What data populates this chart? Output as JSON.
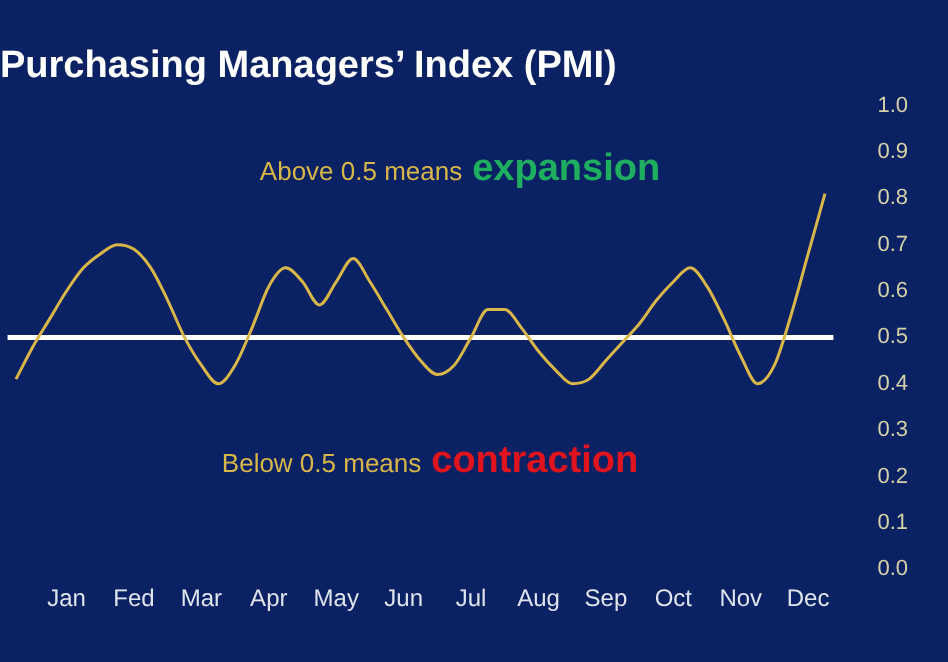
{
  "chart_data": {
    "type": "line",
    "title": "Purchasing Managers’ Index (PMI)",
    "categories": [
      null,
      null,
      null,
      "Jan",
      null,
      null,
      null,
      "Fed",
      null,
      null,
      null,
      "Mar",
      null,
      null,
      null,
      "Apr",
      null,
      null,
      null,
      "May",
      null,
      null,
      null,
      "Jun",
      null,
      null,
      null,
      "Jul",
      null,
      null,
      null,
      "Aug",
      null,
      null,
      null,
      "Sep",
      null,
      null,
      null,
      "Oct",
      null,
      null,
      null,
      "Nov",
      null,
      null,
      null,
      "Dec",
      null
    ],
    "series": [
      {
        "color": "#d9b64a",
        "values": [
          0.41,
          0.48,
          0.54,
          0.6,
          0.65,
          0.68,
          0.7,
          0.69,
          0.65,
          0.58,
          0.5,
          0.44,
          0.4,
          0.44,
          0.52,
          0.61,
          0.65,
          0.62,
          0.57,
          0.62,
          0.67,
          0.62,
          0.56,
          0.5,
          0.45,
          0.42,
          0.44,
          0.5,
          0.56,
          0.56,
          0.52,
          0.47,
          0.43,
          0.4,
          0.41,
          0.45,
          0.49,
          0.53,
          0.58,
          0.62,
          0.65,
          0.61,
          0.54,
          0.46,
          0.4,
          0.44,
          0.55,
          0.68,
          0.81
        ]
      }
    ],
    "ylim": [
      0,
      1
    ],
    "yticks": [
      {
        "value": 0,
        "label": "0.0"
      },
      {
        "value": 0.1,
        "label": "0.1"
      },
      {
        "value": 0.2,
        "label": "0.2"
      },
      {
        "value": 0.3,
        "label": "0.3"
      },
      {
        "value": 0.4,
        "label": "0.4"
      },
      {
        "value": 0.5,
        "label": "0.5"
      },
      {
        "value": 0.6,
        "label": "0.6"
      },
      {
        "value": 0.7,
        "label": "0.7"
      },
      {
        "value": 0.8,
        "label": "0.8"
      },
      {
        "value": 0.9,
        "label": "0.9"
      },
      {
        "value": 1,
        "label": "1.0"
      }
    ],
    "ref_lines": [
      {
        "axis": "y",
        "value": 0.5,
        "color": "#ffffff",
        "line_style": "solid"
      }
    ],
    "annotations": [
      "Above 0.5 means",
      "expansion",
      "Below 0.5 means",
      "contraction"
    ],
    "grid": false,
    "legend": false,
    "marker": "none",
    "line_style": "solid"
  }
}
